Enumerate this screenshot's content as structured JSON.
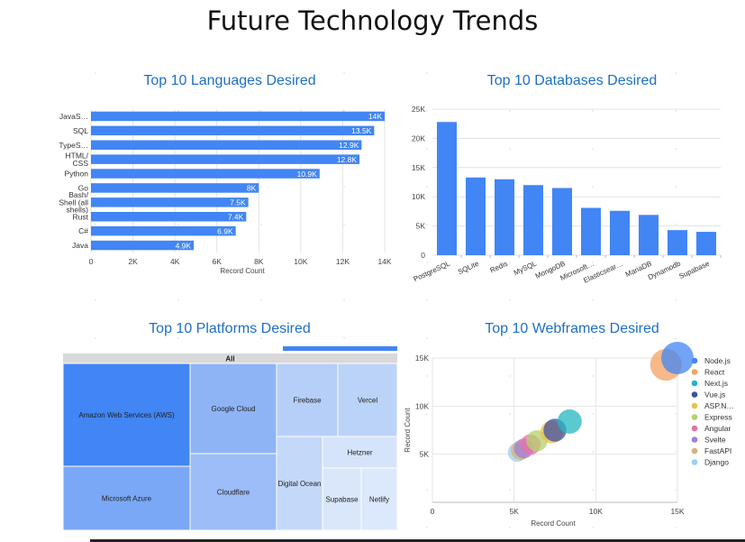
{
  "page_title": "Future Technology Trends",
  "chart_data": [
    {
      "type": "bar",
      "orientation": "horizontal",
      "title": "Top 10 Languages Desired",
      "categories": [
        "JavaS…",
        "SQL",
        "TypeS…",
        "HTML/\nCSS",
        "Python",
        "Go",
        "Bash/\nShell (all\nshells)",
        "Rust",
        "C#",
        "Java"
      ],
      "values": [
        14000,
        13500,
        12900,
        12800,
        10900,
        8000,
        7500,
        7400,
        6900,
        4900
      ],
      "data_labels": [
        "14K",
        "13.5K",
        "12.9K",
        "12.8K",
        "10.9K",
        "8K",
        "7.5K",
        "7.4K",
        "6.9K",
        "4.9K"
      ],
      "xlabel": "Record Count",
      "xlim": [
        0,
        14000
      ],
      "xticks": [
        0,
        2000,
        4000,
        6000,
        8000,
        10000,
        12000,
        14000
      ],
      "xtick_labels": [
        "0",
        "2K",
        "4K",
        "6K",
        "8K",
        "10K",
        "12K",
        "14K"
      ],
      "color": "#4285f4",
      "grid": true
    },
    {
      "type": "bar",
      "title": "Top 10 Databases Desired",
      "categories": [
        "PostgreSQL",
        "SQLite",
        "Redis",
        "MySQL",
        "MongoDB",
        "Microsoft…",
        "Elasticsear…",
        "MariaDB",
        "Dynamodb",
        "Supabase"
      ],
      "values": [
        22800,
        13300,
        13000,
        12000,
        11500,
        8100,
        7600,
        6900,
        4300,
        4000
      ],
      "ylim": [
        0,
        25000
      ],
      "yticks": [
        0,
        5000,
        10000,
        15000,
        20000,
        25000
      ],
      "ytick_labels": [
        "0",
        "5K",
        "10K",
        "15K",
        "20K",
        "25K"
      ],
      "color": "#4285f4",
      "grid": true
    },
    {
      "type": "treemap",
      "title": "Top 10 Platforms Desired",
      "root_label": "All",
      "items": [
        {
          "label": "Amazon Web Services (AWS)",
          "shade": "#4285f4"
        },
        {
          "label": "Microsoft Azure",
          "shade": "#7aa8f6"
        },
        {
          "label": "Google Cloud",
          "shade": "#8fb4f6"
        },
        {
          "label": "Cloudflare",
          "shade": "#9cbdf7"
        },
        {
          "label": "Firebase",
          "shade": "#b6cff8"
        },
        {
          "label": "Vercel",
          "shade": "#bcd3f9"
        },
        {
          "label": "Digital Ocean",
          "shade": "#c4d8fa"
        },
        {
          "label": "Hetzner",
          "shade": "#d6e4fb"
        },
        {
          "label": "Supabase",
          "shade": "#dae7fb"
        },
        {
          "label": "Netlify",
          "shade": "#dce8fc"
        }
      ]
    },
    {
      "type": "scatter",
      "title": "Top 10 Webframes Desired",
      "xlabel": "Record Count",
      "ylabel": "Record Count",
      "xlim": [
        0,
        15000
      ],
      "ylim": [
        0,
        15000
      ],
      "xticks": [
        0,
        5000,
        10000,
        15000
      ],
      "xtick_labels": [
        "0",
        "5K",
        "10K",
        "15K"
      ],
      "yticks": [
        5000,
        10000,
        15000
      ],
      "ytick_labels": [
        "5K",
        "10K",
        "15K"
      ],
      "legend_position": "right",
      "series": [
        {
          "name": "Node.js",
          "x": 15000,
          "y": 15000,
          "color": "#4285f4"
        },
        {
          "name": "React",
          "x": 14300,
          "y": 14300,
          "color": "#f4a261"
        },
        {
          "name": "Next.js",
          "x": 8400,
          "y": 8400,
          "color": "#26b5c0"
        },
        {
          "name": "Vue.js",
          "x": 7500,
          "y": 7500,
          "color": "#3f4f9e"
        },
        {
          "name": "ASP.N…",
          "x": 7300,
          "y": 7300,
          "color": "#e9c24a"
        },
        {
          "name": "Express",
          "x": 6400,
          "y": 6400,
          "color": "#b5d06b"
        },
        {
          "name": "Angular",
          "x": 6000,
          "y": 6000,
          "color": "#e86fa8"
        },
        {
          "name": "Svelte",
          "x": 5600,
          "y": 5600,
          "color": "#9b7fd9"
        },
        {
          "name": "FastAPI",
          "x": 5400,
          "y": 5400,
          "color": "#d9b07a"
        },
        {
          "name": "Django",
          "x": 5200,
          "y": 5200,
          "color": "#9fd0ee"
        }
      ]
    }
  ]
}
